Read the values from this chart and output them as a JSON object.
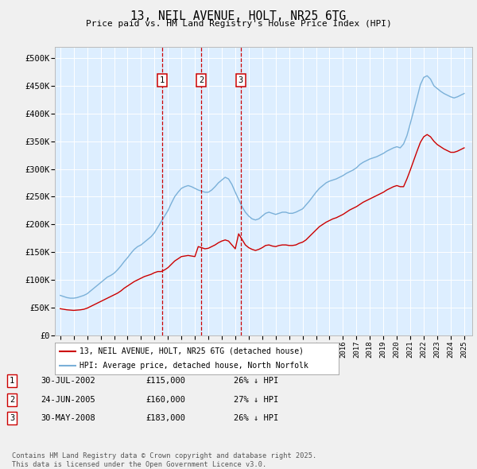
{
  "title": "13, NEIL AVENUE, HOLT, NR25 6TG",
  "subtitle": "Price paid vs. HM Land Registry's House Price Index (HPI)",
  "ylim": [
    0,
    520000
  ],
  "yticks": [
    0,
    50000,
    100000,
    150000,
    200000,
    250000,
    300000,
    350000,
    400000,
    450000,
    500000
  ],
  "ytick_labels": [
    "£0",
    "£50K",
    "£100K",
    "£150K",
    "£200K",
    "£250K",
    "£300K",
    "£350K",
    "£400K",
    "£450K",
    "£500K"
  ],
  "xlim_start": 1994.6,
  "xlim_end": 2025.6,
  "outer_bg_color": "#f0f0f0",
  "plot_bg_color": "#ddeeff",
  "hpi_color": "#7ab0d8",
  "price_color": "#cc0000",
  "sale_dates": [
    2002.575,
    2005.483,
    2008.414
  ],
  "sale_prices": [
    115000,
    160000,
    183000
  ],
  "sale_labels": [
    "1",
    "2",
    "3"
  ],
  "legend_house": "13, NEIL AVENUE, HOLT, NR25 6TG (detached house)",
  "legend_hpi": "HPI: Average price, detached house, North Norfolk",
  "table_entries": [
    {
      "num": "1",
      "date": "30-JUL-2002",
      "price": "£115,000",
      "pct": "26% ↓ HPI"
    },
    {
      "num": "2",
      "date": "24-JUN-2005",
      "price": "£160,000",
      "pct": "27% ↓ HPI"
    },
    {
      "num": "3",
      "date": "30-MAY-2008",
      "price": "£183,000",
      "pct": "26% ↓ HPI"
    }
  ],
  "footnote": "Contains HM Land Registry data © Crown copyright and database right 2025.\nThis data is licensed under the Open Government Licence v3.0.",
  "hpi_data_x": [
    1995.0,
    1995.25,
    1995.5,
    1995.75,
    1996.0,
    1996.25,
    1996.5,
    1996.75,
    1997.0,
    1997.25,
    1997.5,
    1997.75,
    1998.0,
    1998.25,
    1998.5,
    1998.75,
    1999.0,
    1999.25,
    1999.5,
    1999.75,
    2000.0,
    2000.25,
    2000.5,
    2000.75,
    2001.0,
    2001.25,
    2001.5,
    2001.75,
    2002.0,
    2002.25,
    2002.5,
    2002.75,
    2003.0,
    2003.25,
    2003.5,
    2003.75,
    2004.0,
    2004.25,
    2004.5,
    2004.75,
    2005.0,
    2005.25,
    2005.5,
    2005.75,
    2006.0,
    2006.25,
    2006.5,
    2006.75,
    2007.0,
    2007.25,
    2007.5,
    2007.75,
    2008.0,
    2008.25,
    2008.5,
    2008.75,
    2009.0,
    2009.25,
    2009.5,
    2009.75,
    2010.0,
    2010.25,
    2010.5,
    2010.75,
    2011.0,
    2011.25,
    2011.5,
    2011.75,
    2012.0,
    2012.25,
    2012.5,
    2012.75,
    2013.0,
    2013.25,
    2013.5,
    2013.75,
    2014.0,
    2014.25,
    2014.5,
    2014.75,
    2015.0,
    2015.25,
    2015.5,
    2015.75,
    2016.0,
    2016.25,
    2016.5,
    2016.75,
    2017.0,
    2017.25,
    2017.5,
    2017.75,
    2018.0,
    2018.25,
    2018.5,
    2018.75,
    2019.0,
    2019.25,
    2019.5,
    2019.75,
    2020.0,
    2020.25,
    2020.5,
    2020.75,
    2021.0,
    2021.25,
    2021.5,
    2021.75,
    2022.0,
    2022.25,
    2022.5,
    2022.75,
    2023.0,
    2023.25,
    2023.5,
    2023.75,
    2024.0,
    2024.25,
    2024.5,
    2024.75,
    2025.0
  ],
  "hpi_data_y": [
    72000,
    70000,
    68000,
    67000,
    67000,
    68000,
    70000,
    72000,
    75000,
    80000,
    85000,
    90000,
    95000,
    100000,
    105000,
    108000,
    112000,
    118000,
    125000,
    133000,
    140000,
    148000,
    155000,
    160000,
    163000,
    168000,
    173000,
    178000,
    185000,
    195000,
    205000,
    215000,
    225000,
    238000,
    250000,
    258000,
    265000,
    268000,
    270000,
    268000,
    265000,
    262000,
    260000,
    258000,
    258000,
    262000,
    268000,
    275000,
    280000,
    285000,
    282000,
    272000,
    258000,
    245000,
    232000,
    222000,
    215000,
    210000,
    208000,
    210000,
    215000,
    220000,
    222000,
    220000,
    218000,
    220000,
    222000,
    222000,
    220000,
    220000,
    222000,
    225000,
    228000,
    235000,
    242000,
    250000,
    258000,
    265000,
    270000,
    275000,
    278000,
    280000,
    282000,
    285000,
    288000,
    292000,
    295000,
    298000,
    302000,
    308000,
    312000,
    315000,
    318000,
    320000,
    322000,
    325000,
    328000,
    332000,
    335000,
    338000,
    340000,
    338000,
    345000,
    360000,
    382000,
    405000,
    428000,
    452000,
    465000,
    468000,
    462000,
    450000,
    445000,
    440000,
    436000,
    433000,
    430000,
    428000,
    430000,
    433000,
    436000
  ],
  "price_data_x": [
    1995.0,
    1995.25,
    1995.5,
    1995.75,
    1996.0,
    1996.25,
    1996.5,
    1996.75,
    1997.0,
    1997.25,
    1997.5,
    1997.75,
    1998.0,
    1998.25,
    1998.5,
    1998.75,
    1999.0,
    1999.25,
    1999.5,
    1999.75,
    2000.0,
    2000.25,
    2000.5,
    2000.75,
    2001.0,
    2001.25,
    2001.5,
    2001.75,
    2002.0,
    2002.25,
    2002.5,
    2002.75,
    2003.0,
    2003.25,
    2003.5,
    2003.75,
    2004.0,
    2004.25,
    2004.5,
    2004.75,
    2005.0,
    2005.25,
    2005.5,
    2005.75,
    2006.0,
    2006.25,
    2006.5,
    2006.75,
    2007.0,
    2007.25,
    2007.5,
    2007.75,
    2008.0,
    2008.25,
    2008.5,
    2008.75,
    2009.0,
    2009.25,
    2009.5,
    2009.75,
    2010.0,
    2010.25,
    2010.5,
    2010.75,
    2011.0,
    2011.25,
    2011.5,
    2011.75,
    2012.0,
    2012.25,
    2012.5,
    2012.75,
    2013.0,
    2013.25,
    2013.5,
    2013.75,
    2014.0,
    2014.25,
    2014.5,
    2014.75,
    2015.0,
    2015.25,
    2015.5,
    2015.75,
    2016.0,
    2016.25,
    2016.5,
    2016.75,
    2017.0,
    2017.25,
    2017.5,
    2017.75,
    2018.0,
    2018.25,
    2018.5,
    2018.75,
    2019.0,
    2019.25,
    2019.5,
    2019.75,
    2020.0,
    2020.25,
    2020.5,
    2020.75,
    2021.0,
    2021.25,
    2021.5,
    2021.75,
    2022.0,
    2022.25,
    2022.5,
    2022.75,
    2023.0,
    2023.25,
    2023.5,
    2023.75,
    2024.0,
    2024.25,
    2024.5,
    2024.75,
    2025.0
  ],
  "price_data_y": [
    48000,
    47000,
    46000,
    45500,
    45000,
    45500,
    46000,
    47000,
    49000,
    52000,
    55000,
    58000,
    61000,
    64000,
    67000,
    70000,
    73000,
    76000,
    80000,
    85000,
    89000,
    93000,
    97000,
    100000,
    103000,
    106000,
    108000,
    110000,
    113000,
    115000,
    115000,
    118000,
    122000,
    128000,
    134000,
    138000,
    142000,
    143000,
    144000,
    143000,
    142000,
    160000,
    158000,
    156000,
    157000,
    160000,
    163000,
    167000,
    170000,
    172000,
    170000,
    163000,
    156000,
    183000,
    173000,
    163000,
    158000,
    155000,
    153000,
    155000,
    158000,
    162000,
    163000,
    161000,
    160000,
    162000,
    163000,
    163000,
    162000,
    162000,
    163000,
    166000,
    168000,
    172000,
    178000,
    184000,
    190000,
    196000,
    200000,
    204000,
    207000,
    210000,
    212000,
    215000,
    218000,
    222000,
    226000,
    229000,
    232000,
    236000,
    240000,
    243000,
    246000,
    249000,
    252000,
    255000,
    258000,
    262000,
    265000,
    268000,
    270000,
    268000,
    268000,
    282000,
    298000,
    315000,
    332000,
    348000,
    358000,
    362000,
    358000,
    350000,
    344000,
    340000,
    336000,
    333000,
    330000,
    330000,
    332000,
    335000,
    338000
  ]
}
